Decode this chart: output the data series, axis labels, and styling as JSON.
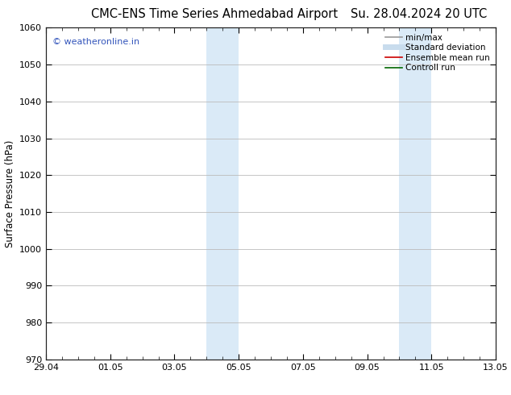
{
  "title_left": "CMC-ENS Time Series Ahmedabad Airport",
  "title_right": "Su. 28.04.2024 20 UTC",
  "ylabel": "Surface Pressure (hPa)",
  "ylim": [
    970,
    1060
  ],
  "yticks": [
    970,
    980,
    990,
    1000,
    1010,
    1020,
    1030,
    1040,
    1050,
    1060
  ],
  "xtick_labels": [
    "29.04",
    "01.05",
    "03.05",
    "05.05",
    "07.05",
    "09.05",
    "11.05",
    "13.05"
  ],
  "xtick_positions": [
    0,
    2,
    4,
    6,
    8,
    10,
    12,
    14
  ],
  "shaded_regions": [
    {
      "x_start": 5.0,
      "x_end": 5.5,
      "color": "#daeaf7"
    },
    {
      "x_start": 5.5,
      "x_end": 6.0,
      "color": "#daeaf7"
    },
    {
      "x_start": 11.0,
      "x_end": 11.5,
      "color": "#daeaf7"
    },
    {
      "x_start": 11.5,
      "x_end": 12.0,
      "color": "#daeaf7"
    }
  ],
  "watermark_text": "© weatheronline.in",
  "watermark_color": "#3355bb",
  "legend_entries": [
    {
      "label": "min/max",
      "color": "#999999",
      "lw": 1.2
    },
    {
      "label": "Standard deviation",
      "color": "#c8dced",
      "lw": 5
    },
    {
      "label": "Ensemble mean run",
      "color": "#cc0000",
      "lw": 1.2
    },
    {
      "label": "Controll run",
      "color": "#006600",
      "lw": 1.2
    }
  ],
  "background_color": "#ffffff",
  "grid_color": "#bbbbbb",
  "title_fontsize": 10.5,
  "ylabel_fontsize": 8.5,
  "tick_fontsize": 8,
  "legend_fontsize": 7.5,
  "watermark_fontsize": 8
}
